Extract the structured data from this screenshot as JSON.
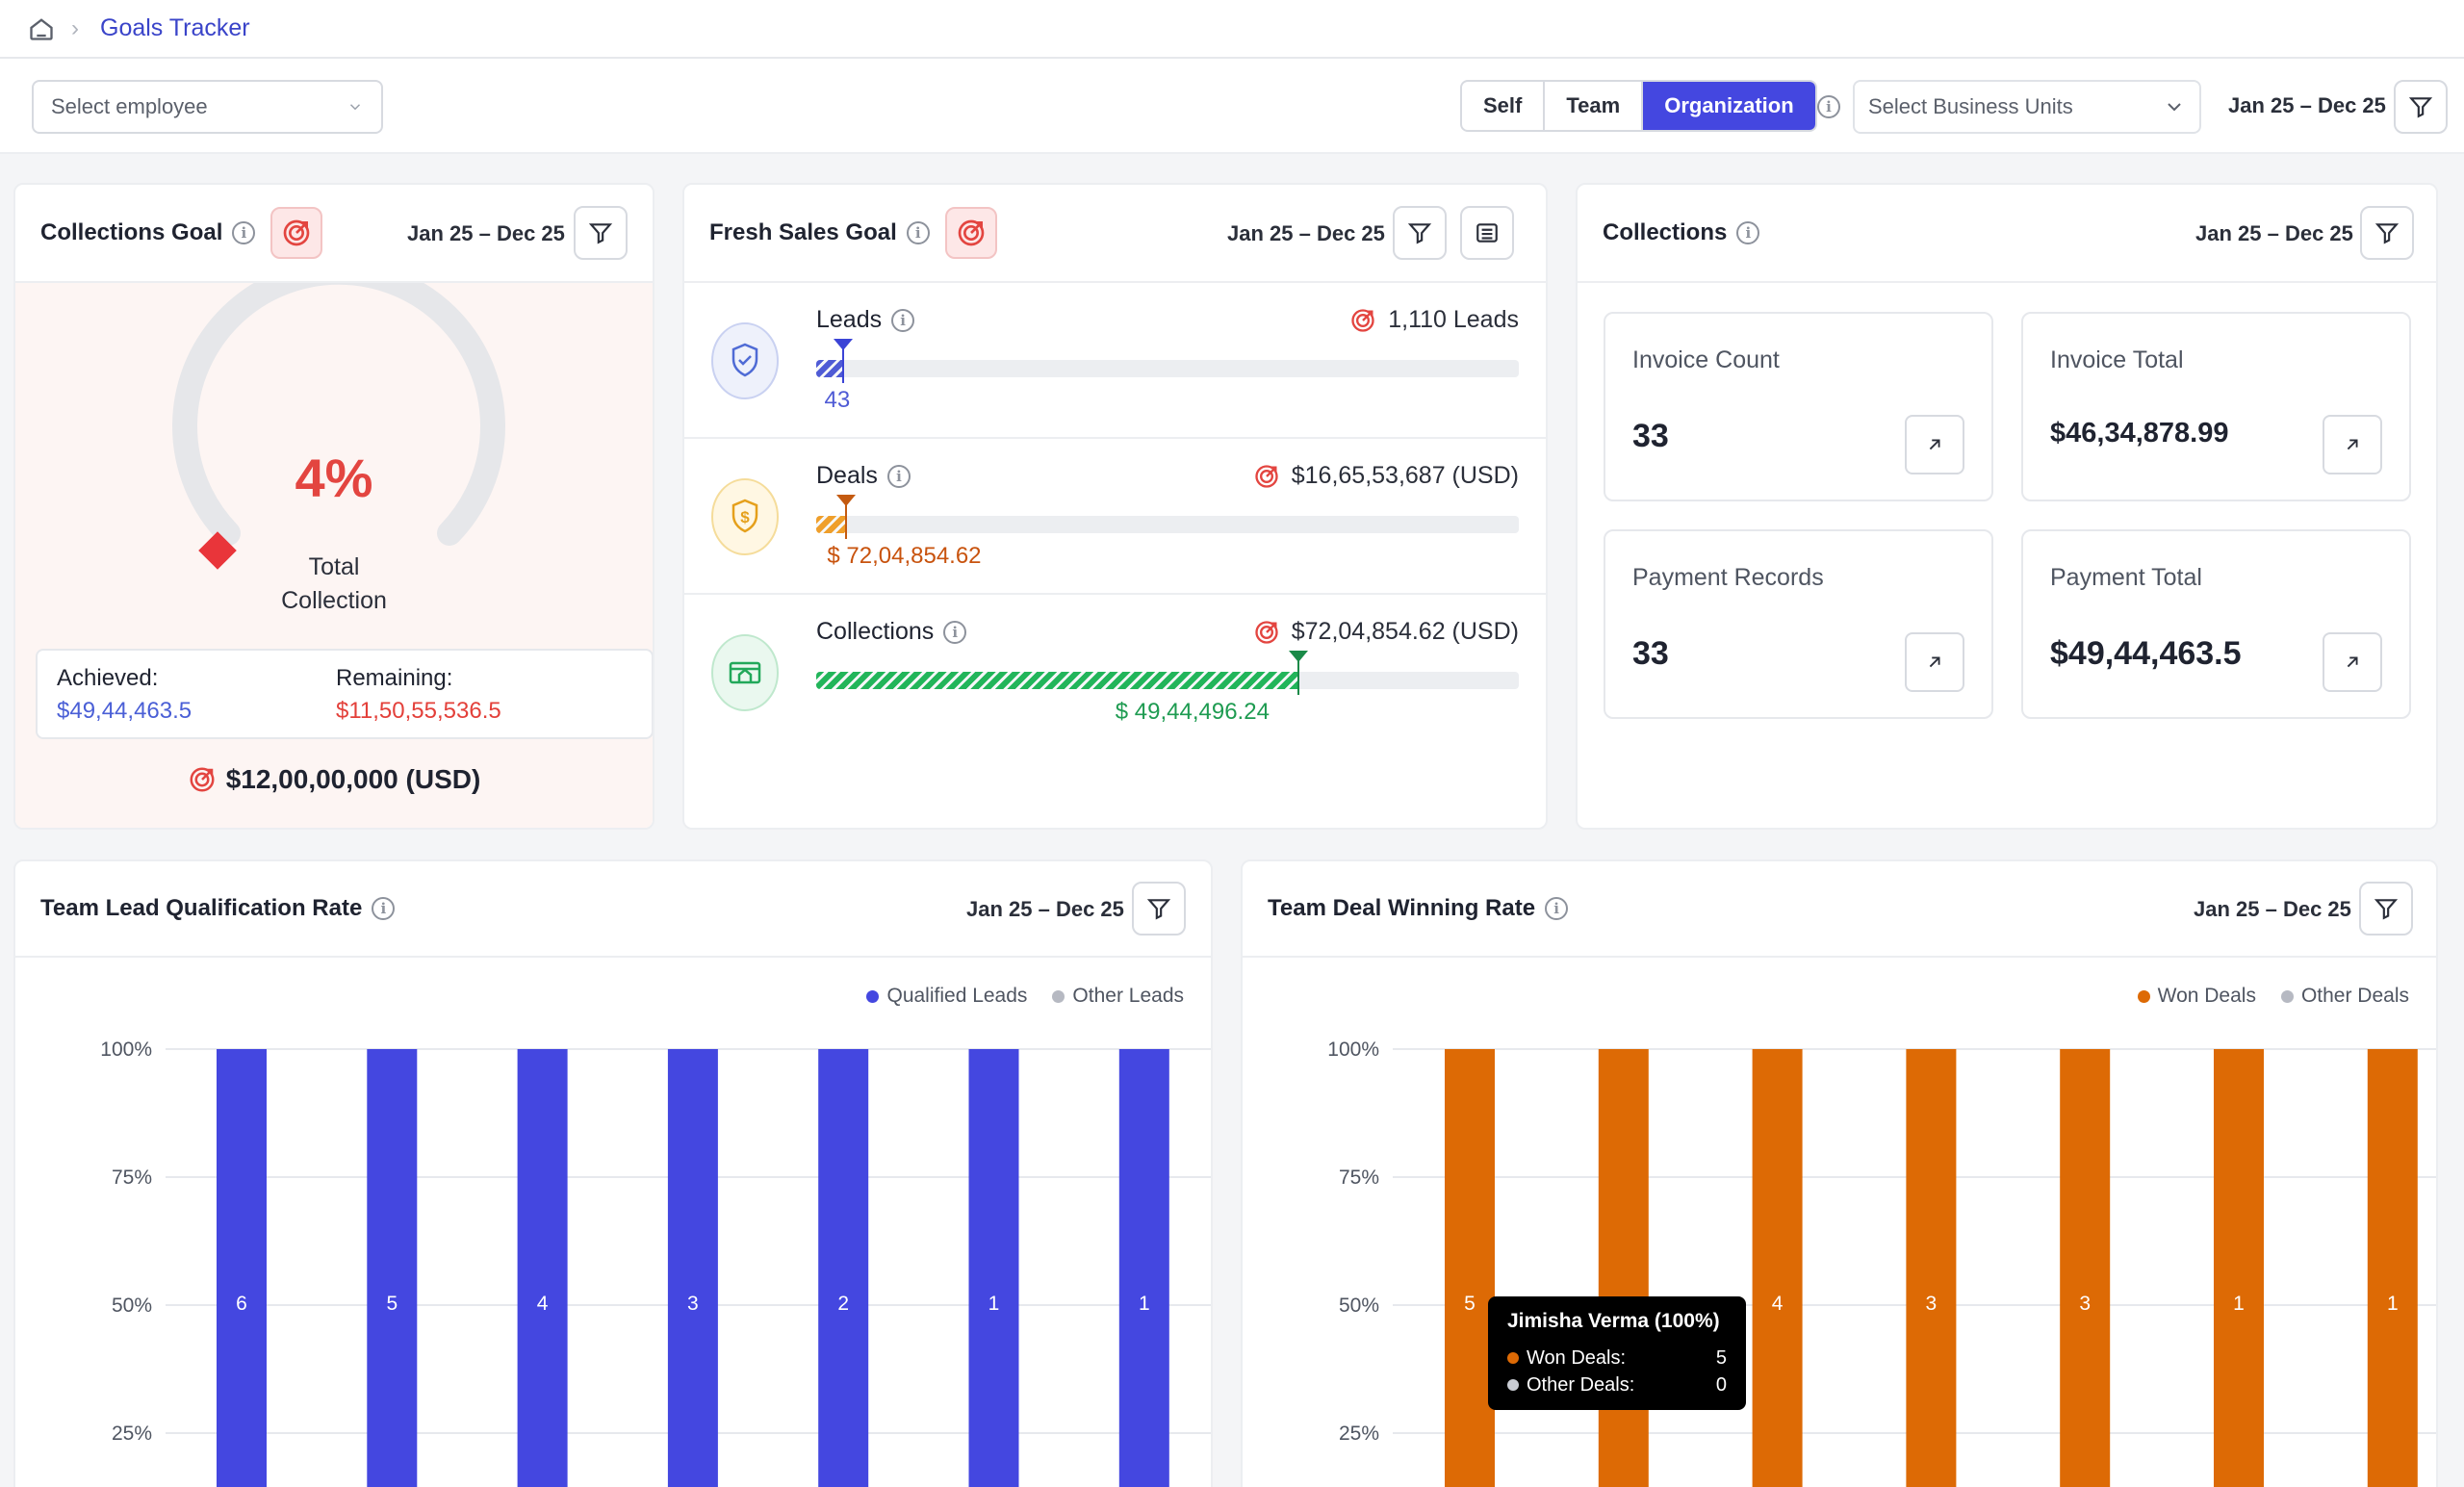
{
  "breadcrumb": {
    "current": "Goals Tracker"
  },
  "filters": {
    "employee_placeholder": "Select employee",
    "scope_options": [
      "Self",
      "Team",
      "Organization"
    ],
    "scope_selected": "Organization",
    "business_units_placeholder": "Select Business Units",
    "date_range": "Jan 25 – Dec 25"
  },
  "collections_goal": {
    "title": "Collections Goal",
    "date_range": "Jan 25 – Dec 25",
    "percent_label": "4%",
    "percent_value": 4,
    "center_label_line1": "Total",
    "center_label_line2": "Collection",
    "achieved_label": "Achieved:",
    "achieved_value": "$49,44,463.5",
    "remaining_label": "Remaining:",
    "remaining_value": "$11,50,55,536.5",
    "goal_total": "$12,00,00,000 (USD)"
  },
  "fresh_sales_goal": {
    "title": "Fresh Sales Goal",
    "date_range": "Jan 25 – Dec 25",
    "rows": [
      {
        "name": "Leads",
        "target": "1,110 Leads",
        "value": "43",
        "progress": 0.039,
        "color": "#4f5bd5",
        "marker_color": "#3b44d6",
        "icon": "shield-check-icon"
      },
      {
        "name": "Deals",
        "target": "$16,65,53,687 (USD)",
        "value": "$ 72,04,854.62",
        "progress": 0.043,
        "color": "#ef9f2b",
        "marker_color": "#c45a10",
        "icon": "shield-dollar-icon"
      },
      {
        "name": "Collections",
        "target": "$72,04,854.62 (USD)",
        "value": "$ 49,44,496.24",
        "progress": 0.686,
        "color": "#22b55a",
        "marker_color": "#1a8a48",
        "icon": "card-icon"
      }
    ]
  },
  "collections": {
    "title": "Collections",
    "date_range": "Jan 25 – Dec 25",
    "stats": [
      {
        "label": "Invoice Count",
        "value": "33"
      },
      {
        "label": "Invoice Total",
        "value": "$46,34,878.99"
      },
      {
        "label": "Payment Records",
        "value": "33"
      },
      {
        "label": "Payment Total",
        "value": "$49,44,463.5"
      }
    ]
  },
  "lead_chart": {
    "title": "Team Lead Qualification Rate",
    "date_range": "Jan 25 – Dec 25",
    "legend": [
      "Qualified Leads",
      "Other Leads"
    ],
    "colors": {
      "primary": "#4447e0",
      "secondary": "#b6b9c2"
    }
  },
  "deal_chart": {
    "title": "Team Deal Winning Rate",
    "date_range": "Jan 25 – Dec 25",
    "legend": [
      "Won Deals",
      "Other Deals"
    ],
    "colors": {
      "primary": "#dd6a05",
      "secondary": "#b6b9c2"
    },
    "tooltip": {
      "title": "Jimisha Verma (100%)",
      "rows": [
        {
          "label": "Won Deals:",
          "value": "5",
          "color": "#dd6a05"
        },
        {
          "label": "Other Deals:",
          "value": "0",
          "color": "#c9ccd3"
        }
      ]
    }
  },
  "chart_data": [
    {
      "type": "bar",
      "title": "Team Lead Qualification Rate",
      "y_ticks": [
        "100%",
        "75%",
        "50%",
        "25%"
      ],
      "ylim": [
        0,
        100
      ],
      "series": [
        {
          "name": "Qualified Leads",
          "values": [
            100,
            100,
            100,
            100,
            100,
            100,
            100
          ],
          "labels": [
            "6",
            "5",
            "4",
            "3",
            "2",
            "1",
            "1"
          ]
        }
      ],
      "legend": "top-right",
      "grid": true
    },
    {
      "type": "bar",
      "title": "Team Deal Winning Rate",
      "y_ticks": [
        "100%",
        "75%",
        "50%",
        "25%"
      ],
      "ylim": [
        0,
        100
      ],
      "series": [
        {
          "name": "Won Deals",
          "values": [
            100,
            100,
            100,
            100,
            100,
            100,
            100
          ],
          "labels": [
            "5",
            "",
            "4",
            "3",
            "3",
            "1",
            "1"
          ]
        }
      ],
      "legend": "top-right",
      "grid": true
    }
  ]
}
